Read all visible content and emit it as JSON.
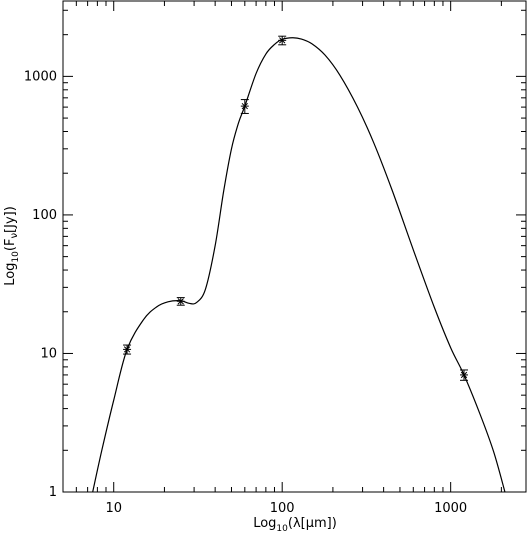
{
  "chart_data": {
    "type": "scatter",
    "xlabel_parts": {
      "pre": "Log",
      "sub": "10",
      "mid": "(",
      "sym": "λ",
      "post": "[μm])"
    },
    "ylabel_parts": {
      "pre": "Log",
      "sub": "10",
      "mid": "(F",
      "nu": "ν",
      "post": "[Jy])"
    },
    "x_scale": "log",
    "y_scale": "log",
    "xlim": [
      5,
      2800
    ],
    "ylim": [
      1,
      3500
    ],
    "x_ticks": [
      {
        "value": 10,
        "label": "10"
      },
      {
        "value": 100,
        "label": "100"
      },
      {
        "value": 1000,
        "label": "1000"
      }
    ],
    "y_ticks": [
      {
        "value": 1,
        "label": "1"
      },
      {
        "value": 10,
        "label": "10"
      },
      {
        "value": 100,
        "label": "100"
      },
      {
        "value": 1000,
        "label": "1000"
      }
    ],
    "series": [
      {
        "kind": "points",
        "marker": "asterisk",
        "x": [
          12,
          25,
          60,
          100,
          1200
        ],
        "y": [
          10.7,
          23.8,
          610,
          1820,
          7.0
        ],
        "y_err": [
          0.8,
          1.5,
          70,
          130,
          0.6
        ]
      },
      {
        "kind": "model-curve",
        "x": [
          7.5,
          8.5,
          10,
          12,
          15,
          18,
          21,
          25,
          28,
          31,
          35,
          40,
          45,
          50,
          55,
          60,
          70,
          80,
          90,
          100,
          115,
          130,
          150,
          180,
          220,
          280,
          350,
          450,
          600,
          800,
          1000,
          1200,
          1500,
          1800,
          2100
        ],
        "y": [
          1.0,
          2.0,
          4.6,
          10.7,
          17.5,
          21.7,
          23.6,
          24.0,
          23.0,
          23.3,
          29.0,
          60.0,
          150,
          300,
          460,
          610,
          1050,
          1450,
          1700,
          1850,
          1900,
          1860,
          1720,
          1420,
          1020,
          600,
          330,
          150,
          56,
          21.5,
          11.0,
          7.0,
          3.6,
          1.95,
          1.0
        ]
      }
    ]
  }
}
